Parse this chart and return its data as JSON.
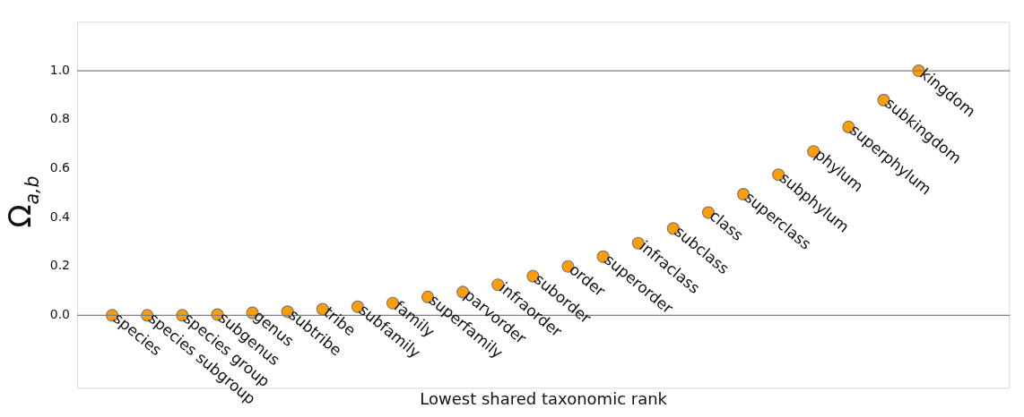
{
  "chart_data": {
    "type": "scatter",
    "xlabel": "Lowest shared taxonomic rank",
    "ylabel": "Ω$_{a,b}$",
    "categories": [
      "species",
      "species subgroup",
      "species group",
      "subgenus",
      "genus",
      "subtribe",
      "tribe",
      "subfamily",
      "family",
      "superfamily",
      "parvorder",
      "infraorder",
      "suborder",
      "order",
      "superorder",
      "infraclass",
      "subclass",
      "class",
      "superclass",
      "subphylum",
      "phylum",
      "superphylum",
      "subkingdom",
      "kingdom"
    ],
    "series": [
      {
        "color": "#ff9e00",
        "values": [
          0,
          0,
          0,
          0.003,
          0.01,
          0.015,
          0.025,
          0.035,
          0.05,
          0.075,
          0.095,
          0.125,
          0.16,
          0.2,
          0.24,
          0.295,
          0.355,
          0.42,
          0.495,
          0.575,
          0.67,
          0.77,
          0.88,
          1.0
        ]
      }
    ],
    "ylim": [
      -0.3,
      1.2
    ],
    "yticks": [
      {
        "value": 0,
        "label": "0.0"
      },
      {
        "value": 0.2,
        "label": "0.2"
      },
      {
        "value": 0.4,
        "label": "0.4"
      },
      {
        "value": 0.6,
        "label": "0.6"
      },
      {
        "value": 0.8,
        "label": "0.8"
      },
      {
        "value": 1,
        "label": "1.0"
      }
    ],
    "grid": false,
    "legend": false,
    "marker": "circle",
    "ref_lines": [
      {
        "axis": "y",
        "value": 0,
        "color": "#808080"
      },
      {
        "axis": "y",
        "value": 1,
        "color": "#808080"
      }
    ]
  }
}
